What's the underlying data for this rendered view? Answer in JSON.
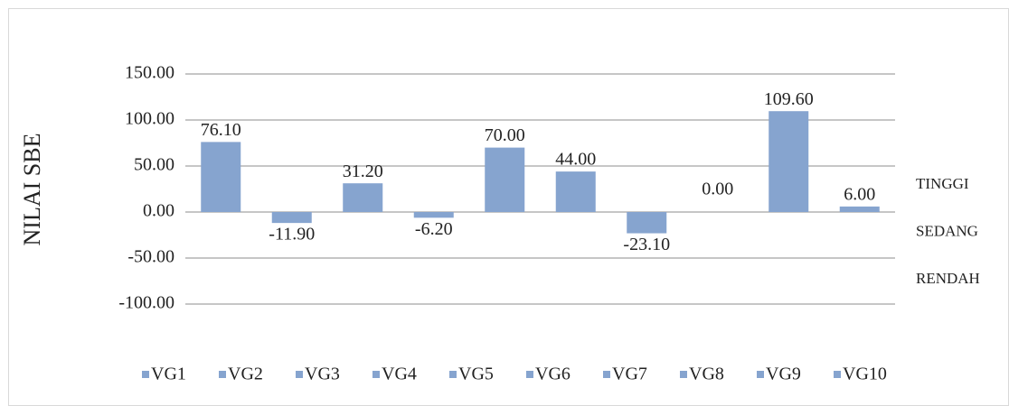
{
  "chart_data": {
    "type": "bar",
    "y_label": "NILAI SBE",
    "categories": [
      "VG1",
      "VG2",
      "VG3",
      "VG4",
      "VG5",
      "VG6",
      "VG7",
      "VG8",
      "VG9",
      "VG10"
    ],
    "values": [
      76.1,
      -11.9,
      31.2,
      -6.2,
      70,
      44,
      -23.1,
      0,
      109.6,
      6
    ],
    "value_labels": [
      "76.10",
      "-11.90",
      "31.20",
      "-6.20",
      "70.00",
      "44.00",
      "-23.10",
      "0.00",
      "109.60",
      "6.00"
    ],
    "color": "#86a4cf",
    "ylim": [
      -100,
      150
    ],
    "yticks": [
      {
        "value": -100,
        "label": "-100.00"
      },
      {
        "value": -50,
        "label": "-50.00"
      },
      {
        "value": 0,
        "label": "0.00"
      },
      {
        "value": 50,
        "label": "50.00"
      },
      {
        "value": 100,
        "label": "100.00"
      },
      {
        "value": 150,
        "label": "150.00"
      }
    ],
    "grid": true,
    "annotations": [
      "TINGGI",
      "SEDANG",
      "RENDAH"
    ],
    "legend": "bottom"
  }
}
